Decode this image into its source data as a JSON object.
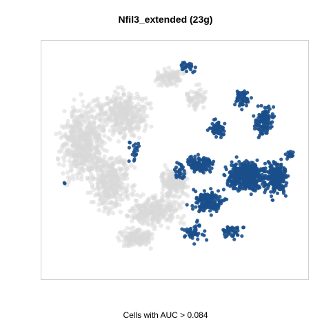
{
  "chart_data": {
    "type": "scatter",
    "title": "Nfil3_extended (23g)",
    "subtitle": "Cells with AUC > 0.084",
    "xlabel": "",
    "ylabel": "",
    "xlim": [
      0,
      100
    ],
    "ylim": [
      0,
      100
    ],
    "grid": false,
    "axes_visible": false,
    "colors": {
      "inactive": "#d9d9d9",
      "active": "#1a4f8b"
    },
    "series": [
      {
        "role": "below-threshold",
        "color": "#d9d9d9",
        "clusters": [
          {
            "cx": 14,
            "cy": 42,
            "rx": 12,
            "ry": 22,
            "n": 520
          },
          {
            "cx": 30,
            "cy": 30,
            "rx": 13,
            "ry": 14,
            "n": 360
          },
          {
            "cx": 25,
            "cy": 60,
            "rx": 11,
            "ry": 17,
            "n": 340
          },
          {
            "cx": 42,
            "cy": 72,
            "rx": 14,
            "ry": 9,
            "n": 280
          },
          {
            "cx": 35,
            "cy": 84,
            "rx": 9,
            "ry": 6,
            "n": 140
          },
          {
            "cx": 50,
            "cy": 60,
            "rx": 8,
            "ry": 10,
            "n": 170
          },
          {
            "cx": 48,
            "cy": 14,
            "rx": 8,
            "ry": 6,
            "n": 90
          },
          {
            "cx": 58,
            "cy": 23,
            "rx": 6,
            "ry": 8,
            "n": 60
          }
        ]
      },
      {
        "role": "above-threshold",
        "color": "#1a4f8b",
        "clusters": [
          {
            "cx": 78,
            "cy": 57,
            "rx": 10,
            "ry": 9,
            "n": 460
          },
          {
            "cx": 90,
            "cy": 58,
            "rx": 6,
            "ry": 10,
            "n": 230
          },
          {
            "cx": 85,
            "cy": 33,
            "rx": 5,
            "ry": 9,
            "n": 120
          },
          {
            "cx": 60,
            "cy": 52,
            "rx": 7,
            "ry": 5,
            "n": 120
          },
          {
            "cx": 63,
            "cy": 68,
            "rx": 9,
            "ry": 7,
            "n": 150
          },
          {
            "cx": 67,
            "cy": 36,
            "rx": 5,
            "ry": 5,
            "n": 55
          },
          {
            "cx": 57,
            "cy": 82,
            "rx": 7,
            "ry": 6,
            "n": 45
          },
          {
            "cx": 72,
            "cy": 82,
            "rx": 6,
            "ry": 4,
            "n": 45
          },
          {
            "cx": 55,
            "cy": 9,
            "rx": 5,
            "ry": 4,
            "n": 26
          },
          {
            "cx": 76,
            "cy": 23,
            "rx": 5,
            "ry": 6,
            "n": 50
          },
          {
            "cx": 95,
            "cy": 48,
            "rx": 2,
            "ry": 2,
            "n": 15
          },
          {
            "cx": 34,
            "cy": 46,
            "rx": 4,
            "ry": 8,
            "n": 20
          },
          {
            "cx": 7,
            "cy": 60,
            "rx": 0.5,
            "ry": 0.5,
            "n": 2
          },
          {
            "cx": 52,
            "cy": 55,
            "rx": 3,
            "ry": 6,
            "n": 30
          }
        ]
      }
    ]
  }
}
